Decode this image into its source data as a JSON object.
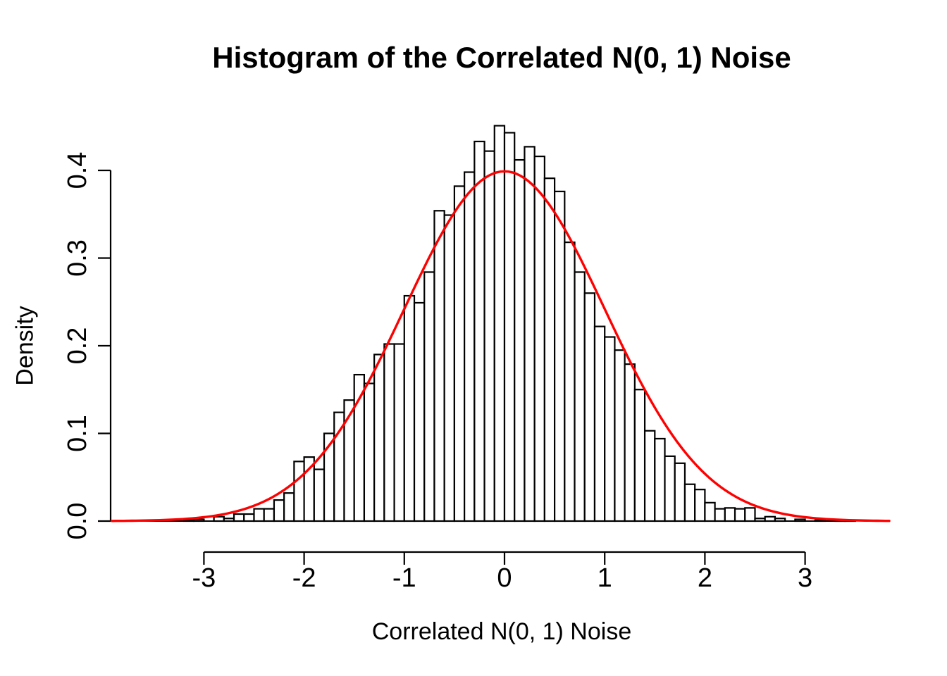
{
  "chart_data": {
    "type": "bar",
    "subtype": "histogram-with-normal-density-curve",
    "title": "Histogram of the Correlated N(0, 1) Noise",
    "xlabel": "Correlated N(0, 1) Noise",
    "ylabel": "Density",
    "x_ticks": [
      -3,
      -2,
      -1,
      0,
      1,
      2,
      3
    ],
    "x_tick_labels": [
      "-3",
      "-2",
      "-1",
      "0",
      "1",
      "2",
      "3"
    ],
    "y_ticks": [
      0.0,
      0.1,
      0.2,
      0.3,
      0.4
    ],
    "y_tick_labels": [
      "0.0",
      "0.1",
      "0.2",
      "0.3",
      "0.4"
    ],
    "xlim": [
      -3.92,
      3.85
    ],
    "ylim": [
      0,
      0.46
    ],
    "grid": false,
    "legend": false,
    "bin_width": 0.1,
    "bin_start": -3.2,
    "baseline_extent": [
      -3.63,
      3.51
    ],
    "densities": [
      0.001,
      0.002,
      0.0,
      0.005,
      0.003,
      0.008,
      0.008,
      0.014,
      0.014,
      0.024,
      0.032,
      0.068,
      0.073,
      0.059,
      0.1,
      0.124,
      0.138,
      0.167,
      0.157,
      0.19,
      0.202,
      0.202,
      0.257,
      0.249,
      0.284,
      0.354,
      0.349,
      0.382,
      0.398,
      0.433,
      0.422,
      0.451,
      0.443,
      0.412,
      0.427,
      0.416,
      0.391,
      0.376,
      0.318,
      0.284,
      0.26,
      0.222,
      0.21,
      0.195,
      0.179,
      0.15,
      0.103,
      0.094,
      0.074,
      0.066,
      0.042,
      0.036,
      0.021,
      0.014,
      0.015,
      0.014,
      0.015,
      0.003,
      0.005,
      0.003,
      0.0,
      0.002,
      0.0,
      0.001,
      0.0,
      0.001,
      0.001
    ],
    "curve": {
      "name": "normal-density",
      "mean": 0,
      "sd": 1,
      "x_from": -3.92,
      "x_to": 3.85,
      "color": "#ff0000"
    },
    "colors": {
      "bar_fill": "#ffffff",
      "bar_stroke": "#000000",
      "axis": "#000000",
      "background": "#ffffff",
      "text": "#000000"
    }
  }
}
